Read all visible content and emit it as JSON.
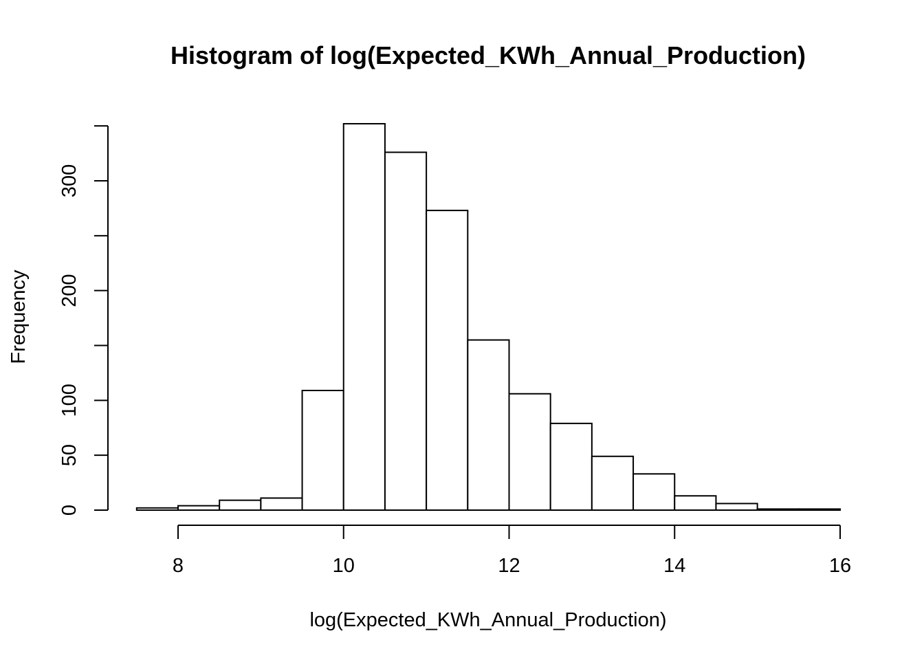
{
  "chart_data": {
    "type": "bar",
    "title": "Histogram of log(Expected_KWh_Annual_Production)",
    "xlabel": "log(Expected_KWh_Annual_Production)",
    "ylabel": "Frequency",
    "xlim": [
      7.5,
      16
    ],
    "ylim": [
      0,
      350
    ],
    "x_ticks": [
      8,
      10,
      12,
      14,
      16
    ],
    "y_ticks": [
      0,
      50,
      100,
      150,
      200,
      250,
      300,
      350
    ],
    "y_tick_labels": {
      "0": "0",
      "50": "50",
      "100": "100",
      "200": "200",
      "300": "300"
    },
    "bins": [
      {
        "x0": 7.5,
        "x1": 8.0,
        "count": 2
      },
      {
        "x0": 8.0,
        "x1": 8.5,
        "count": 4
      },
      {
        "x0": 8.5,
        "x1": 9.0,
        "count": 9
      },
      {
        "x0": 9.0,
        "x1": 9.5,
        "count": 11
      },
      {
        "x0": 9.5,
        "x1": 10.0,
        "count": 109
      },
      {
        "x0": 10.0,
        "x1": 10.5,
        "count": 352
      },
      {
        "x0": 10.5,
        "x1": 11.0,
        "count": 326
      },
      {
        "x0": 11.0,
        "x1": 11.5,
        "count": 273
      },
      {
        "x0": 11.5,
        "x1": 12.0,
        "count": 155
      },
      {
        "x0": 12.0,
        "x1": 12.5,
        "count": 106
      },
      {
        "x0": 12.5,
        "x1": 13.0,
        "count": 79
      },
      {
        "x0": 13.0,
        "x1": 13.5,
        "count": 49
      },
      {
        "x0": 13.5,
        "x1": 14.0,
        "count": 33
      },
      {
        "x0": 14.0,
        "x1": 14.5,
        "count": 13
      },
      {
        "x0": 14.5,
        "x1": 15.0,
        "count": 6
      },
      {
        "x0": 15.0,
        "x1": 15.5,
        "count": 1
      },
      {
        "x0": 15.5,
        "x1": 16.0,
        "count": 1
      }
    ],
    "grid": false,
    "legend": "none"
  }
}
